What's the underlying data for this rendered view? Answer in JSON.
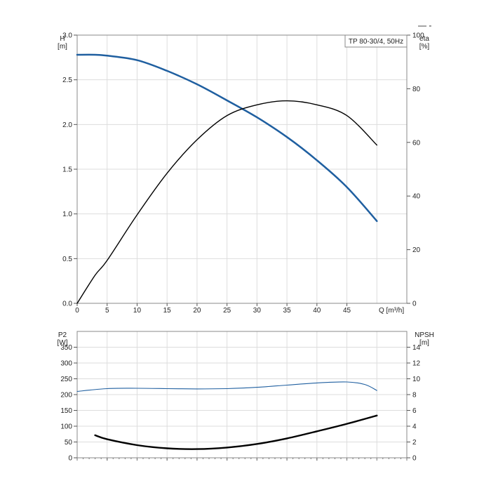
{
  "chart_data": [
    {
      "type": "line",
      "title": "TP 80-30/4, 50Hz",
      "xlabel": "Q [m³/h]",
      "x_ticks": [
        0,
        5,
        10,
        15,
        20,
        25,
        30,
        35,
        40,
        45
      ],
      "xlim": [
        0,
        55
      ],
      "y_left": {
        "label_top": "H",
        "label_unit": "[m]",
        "ylim": [
          0,
          3.0
        ],
        "ticks": [
          "0.0",
          "0.5",
          "1.0",
          "1.5",
          "2.0",
          "2.5",
          "3.0"
        ]
      },
      "y_right": {
        "label_top": "eta",
        "label_unit": "[%]",
        "ylim": [
          0,
          100
        ],
        "ticks": [
          "0",
          "20",
          "40",
          "60",
          "80",
          "100"
        ]
      },
      "grid": true,
      "series": [
        {
          "axis": "left",
          "color": "#1f5fa0",
          "x": [
            0,
            3,
            5,
            10,
            15,
            20,
            25,
            30,
            35,
            40,
            45,
            50
          ],
          "values": [
            2.78,
            2.78,
            2.77,
            2.72,
            2.6,
            2.45,
            2.27,
            2.08,
            1.86,
            1.6,
            1.3,
            0.92
          ]
        },
        {
          "axis": "right",
          "color": "#000000",
          "x": [
            0,
            3,
            5,
            10,
            15,
            20,
            25,
            30,
            35,
            40,
            45,
            50
          ],
          "values": [
            0,
            10.5,
            16,
            33,
            48.5,
            61,
            70,
            74,
            75.5,
            74,
            70,
            59
          ]
        }
      ]
    },
    {
      "type": "line",
      "x_ticks": [
        0,
        5,
        10,
        15,
        20,
        25,
        30,
        35,
        40,
        45
      ],
      "xlim": [
        0,
        55
      ],
      "y_left": {
        "label_top": "P2",
        "label_unit": "[W]",
        "ylim": [
          0,
          400
        ],
        "ticks": [
          "0",
          "50",
          "100",
          "150",
          "200",
          "250",
          "300",
          "350"
        ]
      },
      "y_right": {
        "label_top": "NPSH",
        "label_unit": "[m]",
        "ylim": [
          0,
          16
        ],
        "ticks": [
          "0",
          "2",
          "4",
          "6",
          "8",
          "10",
          "12",
          "14"
        ]
      },
      "grid": true,
      "series": [
        {
          "axis": "left",
          "color": "#1f5fa0",
          "x": [
            0,
            5,
            10,
            15,
            20,
            25,
            30,
            35,
            40,
            45,
            48,
            50
          ],
          "values": [
            210,
            219,
            220,
            219,
            218,
            219,
            223,
            230,
            237,
            240,
            232,
            213
          ]
        },
        {
          "axis": "right",
          "color": "#000000",
          "x": [
            3,
            5,
            10,
            15,
            20,
            25,
            30,
            35,
            40,
            45,
            50
          ],
          "values": [
            2.85,
            2.35,
            1.6,
            1.2,
            1.1,
            1.3,
            1.75,
            2.45,
            3.35,
            4.3,
            5.35
          ]
        }
      ]
    }
  ],
  "legend_mark": "—  -"
}
